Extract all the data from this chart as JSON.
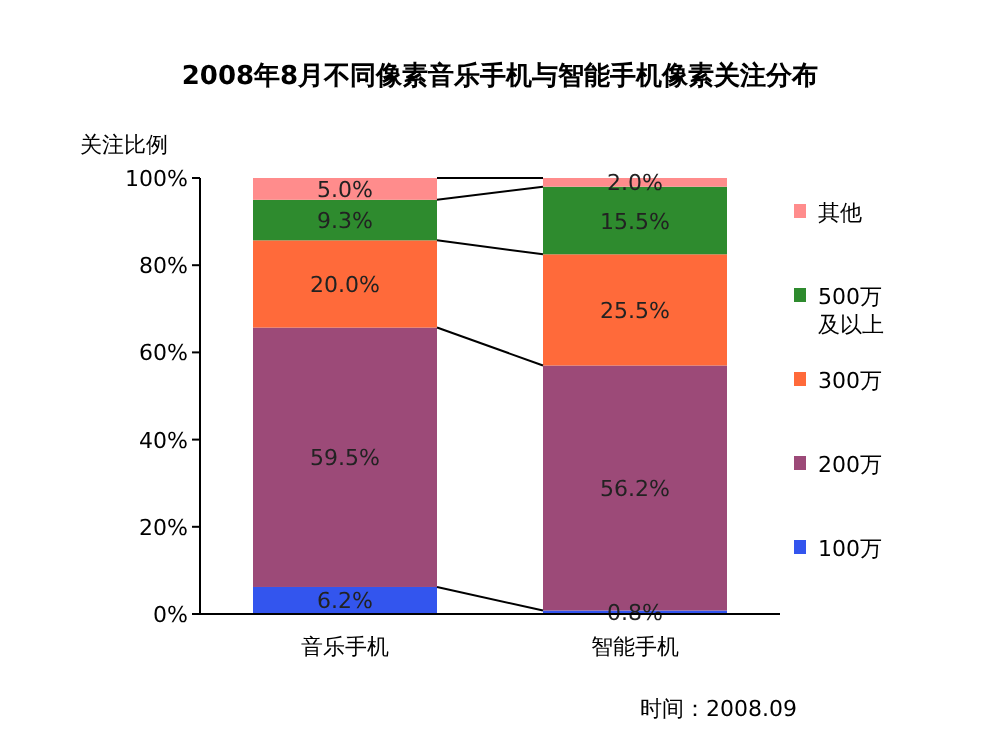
{
  "chart_data": {
    "type": "bar",
    "stacked": true,
    "title": "2008年8月不同像素音乐手机与智能手机像素关注分布",
    "ylabel": "关注比例",
    "categories": [
      "音乐手机",
      "智能手机"
    ],
    "series": [
      {
        "name": "100万",
        "color": "#3355ee",
        "values": [
          6.2,
          0.8
        ],
        "value_labels": [
          "6.2%",
          "0.8%"
        ]
      },
      {
        "name": "200万",
        "color": "#9c4a78",
        "values": [
          59.5,
          56.2
        ],
        "value_labels": [
          "59.5%",
          "56.2%"
        ]
      },
      {
        "name": "300万",
        "color": "#ff6a3a",
        "values": [
          20.0,
          25.5
        ],
        "value_labels": [
          "20.0%",
          "25.5%"
        ]
      },
      {
        "name": "500万及以上",
        "color": "#2e8b2e",
        "values": [
          9.3,
          15.5
        ],
        "value_labels": [
          "9.3%",
          "15.5%"
        ]
      },
      {
        "name": "其他",
        "color": "#ff8c8c",
        "values": [
          5.0,
          2.0
        ],
        "value_labels": [
          "5.0%",
          "2.0%"
        ]
      }
    ],
    "ylim": [
      0,
      100
    ],
    "yticks": [
      {
        "value": 0,
        "label": "0%"
      },
      {
        "value": 20,
        "label": "20%"
      },
      {
        "value": 40,
        "label": "40%"
      },
      {
        "value": 60,
        "label": "60%"
      },
      {
        "value": 80,
        "label": "80%"
      },
      {
        "value": 100,
        "label": "100%"
      }
    ],
    "legend": "right",
    "grid": false,
    "annotations": [
      "时间：2008.09"
    ]
  }
}
